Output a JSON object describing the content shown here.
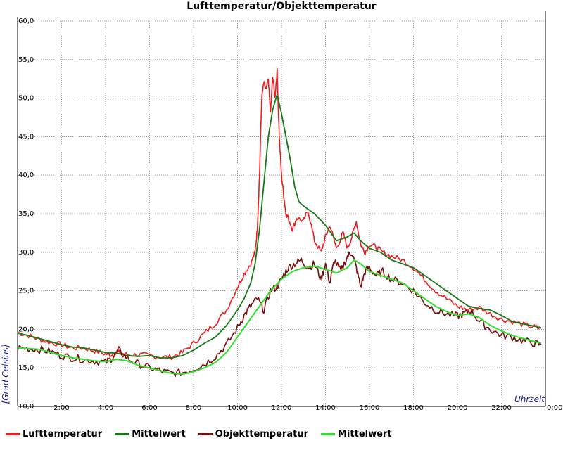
{
  "chart_data": {
    "type": "line",
    "title": "Lufttemperatur/Objekttemperatur",
    "xlabel": "Uhrzeit",
    "ylabel": "[Grad Celsius]",
    "xlim": [
      0,
      24
    ],
    "ylim": [
      10,
      60
    ],
    "grid": true,
    "legend_placement": "bottom",
    "y_ticks": [
      "10,0",
      "15,0",
      "20,0",
      "25,0",
      "30,0",
      "35,0",
      "40,0",
      "45,0",
      "50,0",
      "55,0",
      "60,0"
    ],
    "x_ticks": [
      "2:00",
      "4:00",
      "6:00",
      "8:00",
      "10:00",
      "12:00",
      "14:00",
      "16:00",
      "18:00",
      "20:00",
      "22:00",
      "0:00"
    ],
    "series": [
      {
        "name": "Lufttemperatur",
        "color": "#ee1c1c",
        "x": [
          0,
          0.5,
          1,
          1.5,
          2,
          2.5,
          3,
          3.5,
          4,
          4.3,
          4.6,
          5,
          5.5,
          6,
          6.5,
          7,
          7.5,
          8,
          8.5,
          9,
          9.5,
          10,
          10.3,
          10.6,
          10.8,
          10.9,
          11.0,
          11.1,
          11.2,
          11.3,
          11.4,
          11.5,
          11.6,
          11.7,
          11.8,
          11.9,
          12.0,
          12.1,
          12.2,
          12.3,
          12.5,
          12.7,
          13.0,
          13.2,
          13.5,
          13.8,
          14.0,
          14.2,
          14.5,
          14.8,
          15.0,
          15.2,
          15.4,
          15.6,
          15.8,
          16.0,
          16.3,
          16.6,
          17.0,
          17.5,
          18.0,
          18.5,
          19.0,
          19.5,
          20.0,
          20.5,
          21.0,
          21.5,
          22.0,
          22.5,
          23.0,
          23.5,
          23.8
        ],
        "y": [
          19.6,
          19.2,
          18.7,
          18.3,
          18.0,
          17.6,
          17.6,
          17.2,
          16.8,
          16.7,
          17.0,
          16.7,
          16.7,
          16.6,
          16.4,
          16.4,
          17.0,
          18.2,
          19.5,
          20.8,
          22.5,
          25.5,
          27.2,
          28.5,
          30.0,
          33.0,
          40.0,
          50.0,
          52.0,
          51.0,
          52.5,
          48.0,
          53.0,
          50.0,
          53.5,
          45.0,
          40.0,
          37.5,
          35.0,
          34.5,
          33.0,
          34.5,
          34.0,
          35.5,
          31.5,
          30.0,
          32.0,
          33.5,
          30.5,
          32.5,
          30.5,
          32.0,
          34.0,
          31.0,
          30.0,
          31.0,
          30.7,
          30.0,
          29.5,
          29.0,
          28.0,
          26.5,
          25.0,
          24.0,
          23.0,
          22.5,
          22.8,
          22.0,
          21.3,
          21.0,
          20.6,
          20.3,
          20.1
        ]
      },
      {
        "name": "Mittelwert",
        "color": "#157a15",
        "x": [
          0,
          0.5,
          1,
          1.5,
          2,
          2.5,
          3,
          3.5,
          4,
          4.5,
          5,
          5.5,
          6,
          6.5,
          7,
          7.5,
          8,
          8.5,
          9,
          9.5,
          10,
          10.3,
          10.6,
          10.8,
          11.0,
          11.2,
          11.4,
          11.6,
          11.8,
          12.0,
          12.2,
          12.4,
          12.6,
          12.8,
          13.0,
          13.5,
          14.0,
          14.5,
          15.0,
          15.3,
          15.6,
          16.0,
          16.5,
          17.0,
          17.5,
          18.0,
          18.5,
          19.0,
          19.5,
          20.0,
          20.5,
          21.0,
          21.5,
          22.0,
          22.5,
          23.0,
          23.5,
          23.8
        ],
        "y": [
          19.5,
          19.2,
          18.8,
          18.4,
          18.0,
          17.7,
          17.6,
          17.3,
          17.0,
          16.9,
          16.6,
          16.5,
          16.6,
          16.3,
          16.3,
          16.6,
          17.3,
          18.2,
          19.0,
          20.5,
          22.5,
          24.0,
          26.0,
          28.5,
          33.0,
          39.0,
          45.0,
          48.5,
          50.5,
          48.0,
          45.0,
          42.0,
          38.5,
          36.5,
          36.0,
          35.0,
          33.5,
          31.5,
          32.0,
          32.5,
          31.5,
          30.5,
          30.0,
          29.0,
          28.5,
          28.0,
          27.0,
          26.0,
          25.0,
          24.0,
          23.0,
          22.7,
          22.5,
          21.8,
          21.0,
          20.7,
          20.4,
          20.2
        ]
      },
      {
        "name": "Objekttemperatur",
        "color": "#7a0c0c",
        "x": [
          0,
          0.5,
          1,
          1.5,
          2,
          2.5,
          3,
          3.5,
          4,
          4.3,
          4.6,
          5,
          5.5,
          6,
          6.5,
          7,
          7.5,
          8,
          8.5,
          9,
          9.5,
          10,
          10.3,
          10.6,
          10.9,
          11.2,
          11.5,
          11.8,
          12.0,
          12.3,
          12.6,
          12.9,
          13.2,
          13.5,
          13.8,
          14.0,
          14.2,
          14.4,
          14.7,
          15.0,
          15.2,
          15.4,
          15.6,
          15.8,
          16.0,
          16.3,
          16.6,
          17.0,
          17.5,
          18.0,
          18.5,
          19.0,
          19.5,
          20.0,
          20.3,
          20.6,
          21.0,
          21.5,
          22.0,
          22.5,
          23.0,
          23.5,
          23.8
        ],
        "y": [
          17.6,
          17.5,
          17.4,
          17.1,
          16.6,
          16.3,
          16.1,
          15.9,
          15.7,
          16.3,
          17.3,
          16.2,
          15.5,
          15.0,
          14.6,
          14.3,
          14.4,
          14.9,
          15.5,
          16.5,
          18.0,
          20.2,
          21.8,
          23.0,
          24.0,
          22.5,
          25.0,
          25.5,
          26.5,
          28.0,
          28.5,
          29.0,
          28.0,
          28.5,
          26.5,
          28.5,
          26.0,
          29.0,
          27.5,
          29.5,
          30.0,
          28.0,
          25.5,
          27.5,
          28.0,
          27.0,
          27.5,
          26.5,
          26.0,
          25.0,
          23.5,
          22.5,
          22.0,
          21.7,
          22.0,
          22.5,
          21.0,
          20.0,
          19.2,
          19.0,
          18.5,
          18.2,
          18.0
        ]
      },
      {
        "name": "Mittelwert",
        "color": "#2fe02f",
        "x": [
          0,
          0.5,
          1,
          1.5,
          2,
          2.5,
          3,
          3.5,
          4,
          4.5,
          5,
          5.5,
          6,
          6.5,
          7,
          7.5,
          8,
          8.5,
          9,
          9.5,
          10,
          10.5,
          11,
          11.5,
          12,
          12.5,
          13,
          13.5,
          14,
          14.5,
          15,
          15.3,
          15.6,
          16.0,
          16.5,
          17,
          17.5,
          18,
          18.5,
          19,
          19.5,
          20,
          20.5,
          21,
          21.5,
          22,
          22.5,
          23,
          23.5,
          23.8
        ],
        "y": [
          17.6,
          17.5,
          17.4,
          17.0,
          16.6,
          16.3,
          16.1,
          15.9,
          15.8,
          16.1,
          15.9,
          15.3,
          15.0,
          14.6,
          14.3,
          14.2,
          14.5,
          15.0,
          15.7,
          17.0,
          19.0,
          21.0,
          23.0,
          25.0,
          26.5,
          27.5,
          28.0,
          28.2,
          27.8,
          27.3,
          28.0,
          29.0,
          28.5,
          27.5,
          27.0,
          26.5,
          26.0,
          25.0,
          24.0,
          23.0,
          22.3,
          21.8,
          22.0,
          21.5,
          20.5,
          19.8,
          19.2,
          18.8,
          18.4,
          18.2
        ]
      }
    ]
  }
}
